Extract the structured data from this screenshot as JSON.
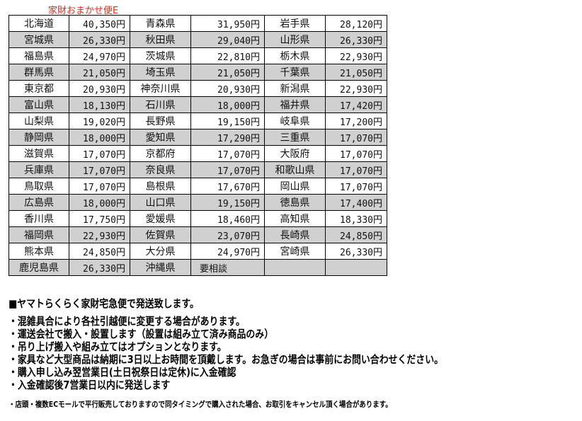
{
  "caption": "家財おまかせ便E",
  "rows": [
    [
      [
        "北海道",
        "40,350円"
      ],
      [
        "青森県",
        "31,950円"
      ],
      [
        "岩手県",
        "28,120円"
      ]
    ],
    [
      [
        "宮城県",
        "26,330円"
      ],
      [
        "秋田県",
        "29,040円"
      ],
      [
        "山形県",
        "26,330円"
      ]
    ],
    [
      [
        "福島県",
        "24,970円"
      ],
      [
        "茨城県",
        "22,810円"
      ],
      [
        "栃木県",
        "22,930円"
      ]
    ],
    [
      [
        "群馬県",
        "21,050円"
      ],
      [
        "埼玉県",
        "21,050円"
      ],
      [
        "千葉県",
        "21,050円"
      ]
    ],
    [
      [
        "東京都",
        "20,930円"
      ],
      [
        "神奈川県",
        "20,930円"
      ],
      [
        "新潟県",
        "22,930円"
      ]
    ],
    [
      [
        "富山県",
        "18,130円"
      ],
      [
        "石川県",
        "18,000円"
      ],
      [
        "福井県",
        "17,420円"
      ]
    ],
    [
      [
        "山梨県",
        "19,020円"
      ],
      [
        "長野県",
        "19,150円"
      ],
      [
        "岐阜県",
        "17,200円"
      ]
    ],
    [
      [
        "静岡県",
        "18,000円"
      ],
      [
        "愛知県",
        "17,290円"
      ],
      [
        "三重県",
        "17,070円"
      ]
    ],
    [
      [
        "滋賀県",
        "17,070円"
      ],
      [
        "京都府",
        "17,070円"
      ],
      [
        "大阪府",
        "17,070円"
      ]
    ],
    [
      [
        "兵庫県",
        "17,070円"
      ],
      [
        "奈良県",
        "17,070円"
      ],
      [
        "和歌山県",
        "17,070円"
      ]
    ],
    [
      [
        "鳥取県",
        "17,070円"
      ],
      [
        "島根県",
        "17,670円"
      ],
      [
        "岡山県",
        "17,070円"
      ]
    ],
    [
      [
        "広島県",
        "18,000円"
      ],
      [
        "山口県",
        "19,150円"
      ],
      [
        "徳島県",
        "17,400円"
      ]
    ],
    [
      [
        "香川県",
        "17,750円"
      ],
      [
        "愛媛県",
        "18,460円"
      ],
      [
        "高知県",
        "18,330円"
      ]
    ],
    [
      [
        "福岡県",
        "22,930円"
      ],
      [
        "佐賀県",
        "23,070円"
      ],
      [
        "長崎県",
        "24,850円"
      ]
    ],
    [
      [
        "熊本県",
        "24,850円"
      ],
      [
        "大分県",
        "24,970円"
      ],
      [
        "宮崎県",
        "26,330円"
      ]
    ],
    [
      [
        "鹿児島県",
        "26,330円"
      ],
      [
        "沖縄県",
        "要相談"
      ],
      [
        "",
        ""
      ]
    ]
  ],
  "notes": {
    "heading": "■ヤマトらくらく家財宅急便で発送致します。",
    "bullets": [
      "・混雑具合により各社引越便に変更する場合があります。",
      "・運送会社で搬入・設置します（設置は組み立て済み商品のみ）",
      "・吊り上げ搬入や組み立てはオプションとなります。",
      "・家具など大型商品は納期に3日以上お時間を頂戴します。お急ぎの場合は事前にお問い合わせください。",
      "・購入申し込み翌営業日(土日祝祭日は定休)に入金確認",
      "・入金確認後7営業日以内に発送します"
    ],
    "small": "・店頭・複数ECモールで平行販売しておりますので同タイミングで購入された場合、お取引をキャンセル頂く場合があります。"
  }
}
